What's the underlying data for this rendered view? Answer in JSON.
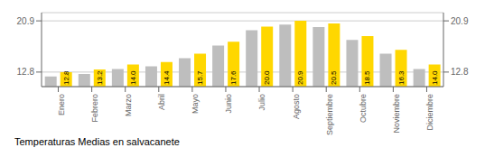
{
  "chart_data": {
    "type": "bar",
    "title": "Temperaturas Medias en salvacanete",
    "categories": [
      "Enero",
      "Febrero",
      "Marzo",
      "Abril",
      "Mayo",
      "Junio",
      "Julio",
      "Agosto",
      "Septiembre",
      "Octubre",
      "Noviembre",
      "Diciembre"
    ],
    "series": [
      {
        "color": "#BEBEBE",
        "values": [
          12.1,
          12.5,
          13.3,
          13.7,
          15.0,
          17.0,
          19.4,
          20.3,
          19.9,
          17.9,
          15.7,
          13.3
        ]
      },
      {
        "color": "#FFD700",
        "values": [
          12.8,
          13.2,
          14.0,
          14.4,
          15.7,
          17.6,
          20.0,
          20.9,
          20.5,
          18.5,
          16.3,
          14.0
        ],
        "data_labels": true,
        "value_labels": [
          "12.8",
          "13.2",
          "14.0",
          "14.4",
          "15.7",
          "17.6",
          "20.0",
          "20.9",
          "20.5",
          "18.5",
          "16.3",
          "14.0"
        ]
      }
    ],
    "ylim": [
      10.5,
      22.2
    ],
    "yticks": [
      12.8,
      20.9
    ],
    "grid": true
  }
}
